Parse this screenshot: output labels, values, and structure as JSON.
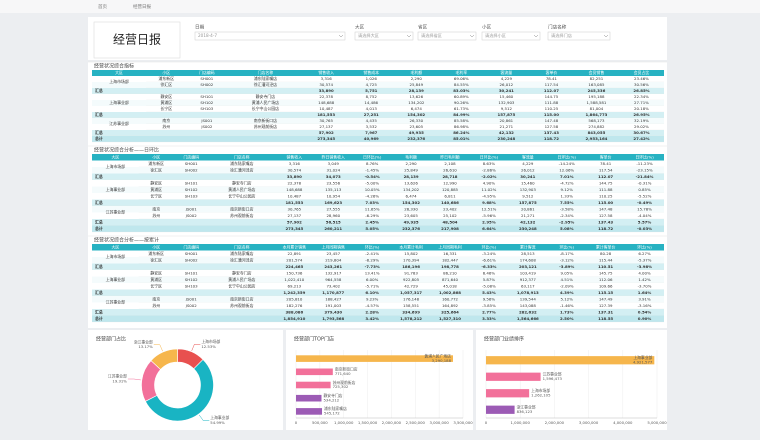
{
  "header": {
    "tabs": [
      "首页",
      "经营日报"
    ],
    "title": "经营日报",
    "filters": [
      {
        "label": "日期",
        "value": "2018-4-7"
      },
      {
        "label": "大区",
        "value": "请选择大区"
      },
      {
        "label": "省区",
        "value": "请选择省区"
      },
      {
        "label": "小区",
        "value": "请选择小区"
      },
      {
        "label": "门店名称",
        "value": "请选择门店"
      }
    ]
  },
  "tables": [
    {
      "title": "经营状况综合指标",
      "columns": [
        "大区",
        "小区",
        "门店编码",
        "门店名称",
        "销售收入",
        "销售成本",
        "毛利额",
        "毛利率",
        "客流量",
        "客单价",
        "会员销售",
        "会员占比"
      ],
      "groups": [
        {
          "region": "上海市场部",
          "rows": [
            [
              "浦东新区",
              "SH001",
              "浦东陆家嘴店",
              "3,316",
              "1,026",
              "2,290",
              "69.06%",
              "4,229",
              "78.41",
              "82,251",
              "23.46%"
            ],
            [
              "徐汇区",
              "SH002",
              "徐汇漕河泾店",
              "30,574",
              "4,725",
              "25,849",
              "84.55%",
              "26,012",
              "117.54",
              "163,085",
              "30.56%"
            ]
          ],
          "total": {
            "label": "汇总",
            "cells": [
              "33,890",
              "5,751",
              "28,139",
              "83.03%",
              "30,241",
              "112.07",
              "245,336",
              "26.85%"
            ]
          }
        },
        {
          "region": "上海事业部",
          "rows": [
            [
              "静安区",
              "SH101",
              "静安寺门店",
              "22,378",
              "8,752",
              "13,626",
              "60.89%",
              "15,460",
              "144.75",
              "195,188",
              "22.34%"
            ],
            [
              "黄浦区",
              "SH102",
              "黄浦人民广场店",
              "148,688",
              "14,486",
              "134,202",
              "90.26%",
              "132,903",
              "111.88",
              "1,588,581",
              "27.71%"
            ],
            [
              "长宁区",
              "SH103",
              "长宁中山公园店",
              "10,487",
              "4,013",
              "6,474",
              "61.73%",
              "9,512",
              "110.25",
              "81,004",
              "20.18%"
            ]
          ],
          "total": {
            "label": "汇总",
            "cells": [
              "181,553",
              "27,251",
              "154,302",
              "84.99%",
              "157,875",
              "115.00",
              "1,864,773",
              "26.95%"
            ]
          }
        },
        {
          "region": "江苏事业部",
          "rows": [
            [
              "南京",
              "JS001",
              "南京新街口店",
              "30,765",
              "4,435",
              "26,330",
              "85.58%",
              "20,861",
              "147.48",
              "568,173",
              "32.19%"
            ],
            [
              "苏州",
              "JS002",
              "苏州观前街店",
              "27,137",
              "3,532",
              "23,605",
              "86.98%",
              "21,271",
              "127.58",
              "274,882",
              "29.02%"
            ]
          ],
          "total": {
            "label": "汇总",
            "cells": [
              "57,902",
              "7,967",
              "49,935",
              "86.24%",
              "42,132",
              "137.43",
              "843,055",
              "30.67%"
            ]
          }
        }
      ],
      "total": {
        "label": "总计",
        "cells": [
          "273,345",
          "40,969",
          "232,376",
          "85.01%",
          "230,248",
          "118.72",
          "2,953,164",
          "27.42%"
        ]
      }
    },
    {
      "title": "经营状况综合分析——日环比",
      "columns": [
        "大区",
        "小区",
        "门店编码",
        "门店名称",
        "销售收入",
        "昨日销售收入",
        "日环比(%)",
        "毛利额",
        "昨日毛利额",
        "日环比(%)",
        "客流量",
        "日环比(%)",
        "客单价",
        "日环比(%)"
      ],
      "groups": [
        {
          "region": "上海市场部",
          "rows": [
            [
              "浦东新区",
              "SH001",
              "浦东陆家嘴店",
              "3,316",
              "3,049",
              "8.76%",
              "2,290",
              "2,108",
              "8.63%",
              "4,229",
              "-14.24%",
              "78.41",
              "-11.23%"
            ],
            [
              "徐汇区",
              "SH002",
              "徐汇漕河泾店",
              "30,574",
              "31,024",
              "-1.45%",
              "25,849",
              "26,610",
              "-2.86%",
              "26,012",
              "12.06%",
              "117.54",
              "-23.15%"
            ]
          ],
          "total": {
            "label": "汇总",
            "cells": [
              "33,890",
              "34,073",
              "-0.54%",
              "28,139",
              "28,718",
              "-2.02%",
              "30,241",
              "7.01%",
              "112.07",
              "-21.84%"
            ]
          }
        },
        {
          "region": "上海事业部",
          "rows": [
            [
              "静安区",
              "SH101",
              "静安寺门店",
              "22,378",
              "23,556",
              "-5.00%",
              "13,626",
              "12,990",
              "4.90%",
              "15,460",
              "-4.72%",
              "144.75",
              "-0.31%"
            ],
            [
              "黄浦区",
              "SH102",
              "黄浦人民广场店",
              "148,688",
              "135,113",
              "10.05%",
              "134,202",
              "120,885",
              "11.02%",
              "132,903",
              "9.12%",
              "111.88",
              "0.85%"
            ],
            [
              "长宁区",
              "SH103",
              "长宁中山公园店",
              "10,487",
              "10,954",
              "-4.26%",
              "6,474",
              "6,811",
              "-4.95%",
              "9,512",
              "1.33%",
              "110.25",
              "-5.52%"
            ]
          ],
          "total": {
            "label": "汇总",
            "cells": [
              "181,553",
              "169,623",
              "7.03%",
              "154,302",
              "140,686",
              "9.68%",
              "157,875",
              "7.55%",
              "115.00",
              "-0.49%"
            ]
          }
        },
        {
          "region": "江苏事业部",
          "rows": [
            [
              "南京",
              "JS001",
              "南京新街口店",
              "30,765",
              "27,555",
              "11.65%",
              "26,330",
              "23,402",
              "12.51%",
              "20,861",
              "-3.58%",
              "147.48",
              "15.78%"
            ],
            [
              "苏州",
              "JS002",
              "苏州观前街店",
              "27,137",
              "28,960",
              "-6.29%",
              "23,605",
              "25,102",
              "-5.96%",
              "21,271",
              "-2.34%",
              "127.58",
              "-4.04%"
            ]
          ],
          "total": {
            "label": "汇总",
            "cells": [
              "57,902",
              "56,515",
              "2.45%",
              "49,935",
              "48,504",
              "2.95%",
              "42,132",
              "-2.95%",
              "137.43",
              "5.57%"
            ]
          }
        }
      ],
      "total": {
        "label": "总计",
        "cells": [
          "273,345",
          "260,211",
          "5.05%",
          "232,376",
          "217,908",
          "6.64%",
          "230,248",
          "5.08%",
          "118.72",
          "-0.03%"
        ]
      }
    },
    {
      "title": "经营状况综合分析——按累计",
      "columns": [
        "大区",
        "小区",
        "门店编码",
        "门店名称",
        "本月累计销售",
        "上月同期销售",
        "环比(%)",
        "本月累计毛利",
        "上月同期毛利",
        "环比(%)",
        "累计客流",
        "环比(%)",
        "累计客单价",
        "环比(%)"
      ],
      "groups": [
        {
          "region": "上海市场部",
          "rows": [
            [
              "浦东新区",
              "SH001",
              "浦东陆家嘴店",
              "22,891",
              "23,457",
              "-2.41%",
              "15,802",
              "16,331",
              "-3.24%",
              "28,513",
              "-8.17%",
              "80.28",
              "6.27%"
            ],
            [
              "徐汇区",
              "SH002",
              "徐汇漕河泾店",
              "201,574",
              "219,804",
              "-8.29%",
              "170,394",
              "182,447",
              "-6.61%",
              "174,608",
              "-3.12%",
              "115.44",
              "-5.37%"
            ]
          ],
          "total": {
            "label": "汇总",
            "cells": [
              "224,465",
              "243,261",
              "-7.73%",
              "186,196",
              "198,778",
              "-6.33%",
              "203,121",
              "-3.89%",
              "110.51",
              "-3.98%"
            ]
          }
        },
        {
          "region": "上海事业部",
          "rows": [
            [
              "静安区",
              "SH101",
              "静安寺门店",
              "150,736",
              "132,917",
              "13.41%",
              "91,783",
              "86,210",
              "6.46%",
              "103,419",
              "9.05%",
              "145.75",
              "4.00%"
            ],
            [
              "黄浦区",
              "SH102",
              "黄浦人民广场店",
              "1,022,410",
              "964,558",
              "6.00%",
              "922,805",
              "871,640",
              "5.87%",
              "912,377",
              "4.51%",
              "112.06",
              "1.42%"
            ],
            [
              "长宁区",
              "SH103",
              "长宁中山公园店",
              "69,213",
              "73,402",
              "-5.71%",
              "42,729",
              "45,018",
              "-5.08%",
              "63,117",
              "-2.09%",
              "109.66",
              "-3.70%"
            ]
          ],
          "total": {
            "label": "汇总",
            "cells": [
              "1,242,359",
              "1,170,877",
              "6.10%",
              "1,057,317",
              "1,002,868",
              "5.43%",
              "1,078,913",
              "4.39%",
              "115.15",
              "1.64%"
            ]
          }
        },
        {
          "region": "江苏事业部",
          "rows": [
            [
              "南京",
              "JS001",
              "南京新街口店",
              "205,810",
              "188,427",
              "9.23%",
              "176,148",
              "160,772",
              "9.56%",
              "139,544",
              "5.12%",
              "147.49",
              "3.91%"
            ],
            [
              "苏州",
              "JS002",
              "苏州观前街店",
              "182,276",
              "191,003",
              "-4.57%",
              "158,551",
              "164,892",
              "-3.85%",
              "143,088",
              "-1.46%",
              "127.39",
              "-3.16%"
            ]
          ],
          "total": {
            "label": "汇总",
            "cells": [
              "388,086",
              "379,430",
              "2.28%",
              "334,699",
              "325,664",
              "2.77%",
              "282,632",
              "1.73%",
              "137.31",
              "0.54%"
            ]
          }
        }
      ],
      "total": {
        "label": "总计",
        "cells": [
          "1,854,910",
          "1,793,568",
          "3.42%",
          "1,578,212",
          "1,527,310",
          "3.33%",
          "1,564,666",
          "2.50%",
          "118.55",
          "0.90%"
        ]
      }
    }
  ],
  "chart_data": [
    {
      "type": "pie",
      "title": "经营部门占比",
      "categories": [
        "上海市场部",
        "上海事业部",
        "江苏事业部",
        "浙江事业部"
      ],
      "values": [
        12.53,
        54.99,
        19.31,
        13.17
      ],
      "value_labels": [
        "12.53%",
        "54.99%",
        "19.31%",
        "13.17%"
      ],
      "colors": [
        "#e8504f",
        "#19b4c3",
        "#f2709a",
        "#f6b64c"
      ]
    },
    {
      "type": "hbar",
      "title": "经营部门TOP门店",
      "categories": [
        "黄浦人民广场店",
        "南京新街口店",
        "苏州观前街店",
        "静安寺门店",
        "浦东陆家嘴店"
      ],
      "values": [
        3290188,
        771640,
        725302,
        534212,
        545172
      ],
      "value_labels": [
        "3,290,188",
        "771,640",
        "725,302",
        "534,212",
        "545,172"
      ],
      "colors": [
        "#f6b64c",
        "#f2709a",
        "#f2709a",
        "#9c5bb5",
        "#9c5bb5"
      ],
      "xlim": [
        0,
        3500000
      ],
      "xticks": [
        0,
        {
          "value": 500000,
          "label": "500,000"
        },
        {
          "value": 1000000,
          "label": "1,000,000"
        },
        {
          "value": 1500000,
          "label": "1,500,000"
        },
        {
          "value": 2000000,
          "label": "2,000,000"
        },
        {
          "value": 2500000,
          "label": "2,500,000"
        },
        {
          "value": 3000000,
          "label": "3,000,000"
        },
        {
          "value": 3500000,
          "label": "3,500,000"
        }
      ],
      "grid": true
    },
    {
      "type": "hbar",
      "title": "经营部门业绩排序",
      "categories": [
        "上海事业部",
        "江苏事业部",
        "上海市场部",
        "浙江事业部"
      ],
      "values": [
        4921577,
        1596473,
        1262105,
        836123
      ],
      "value_labels": [
        "4,921,577",
        "1,596,473",
        "1,262,105",
        "836,123"
      ],
      "colors": [
        "#f6b64c",
        "#f2709a",
        "#f2709a",
        "#9c5bb5"
      ],
      "xlim": [
        0,
        5000000
      ],
      "xticks": [
        0,
        {
          "value": 1000000,
          "label": "1,000,000"
        },
        {
          "value": 2000000,
          "label": "2,000,000"
        },
        {
          "value": 3000000,
          "label": "3,000,000"
        },
        {
          "value": 4000000,
          "label": "4,000,000"
        },
        {
          "value": 5000000,
          "label": "5,000,000"
        }
      ],
      "grid": true
    }
  ]
}
